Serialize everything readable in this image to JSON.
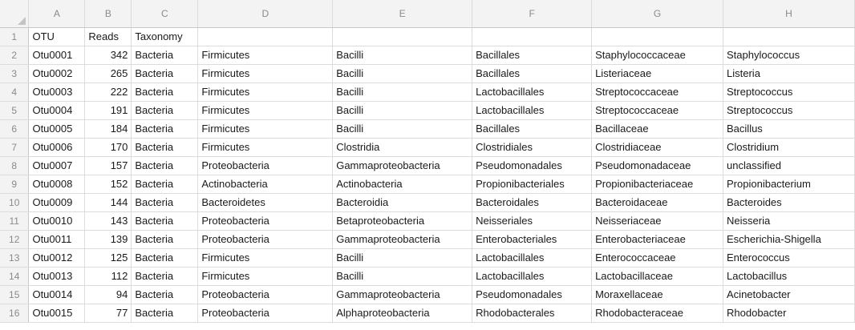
{
  "columns": [
    "A",
    "B",
    "C",
    "D",
    "E",
    "F",
    "G",
    "H"
  ],
  "rows": [
    [
      "OTU",
      "Reads",
      "Taxonomy",
      "",
      "",
      "",
      "",
      ""
    ],
    [
      "Otu0001",
      "342",
      "Bacteria",
      "Firmicutes",
      "Bacilli",
      "Bacillales",
      "Staphylococcaceae",
      "Staphylococcus"
    ],
    [
      "Otu0002",
      "265",
      "Bacteria",
      "Firmicutes",
      "Bacilli",
      "Bacillales",
      "Listeriaceae",
      "Listeria"
    ],
    [
      "Otu0003",
      "222",
      "Bacteria",
      "Firmicutes",
      "Bacilli",
      "Lactobacillales",
      "Streptococcaceae",
      "Streptococcus"
    ],
    [
      "Otu0004",
      "191",
      "Bacteria",
      "Firmicutes",
      "Bacilli",
      "Lactobacillales",
      "Streptococcaceae",
      "Streptococcus"
    ],
    [
      "Otu0005",
      "184",
      "Bacteria",
      "Firmicutes",
      "Bacilli",
      "Bacillales",
      "Bacillaceae",
      "Bacillus"
    ],
    [
      "Otu0006",
      "170",
      "Bacteria",
      "Firmicutes",
      "Clostridia",
      "Clostridiales",
      "Clostridiaceae",
      "Clostridium"
    ],
    [
      "Otu0007",
      "157",
      "Bacteria",
      "Proteobacteria",
      "Gammaproteobacteria",
      "Pseudomonadales",
      "Pseudomonadaceae",
      "unclassified"
    ],
    [
      "Otu0008",
      "152",
      "Bacteria",
      "Actinobacteria",
      "Actinobacteria",
      "Propionibacteriales",
      "Propionibacteriaceae",
      "Propionibacterium"
    ],
    [
      "Otu0009",
      "144",
      "Bacteria",
      "Bacteroidetes",
      "Bacteroidia",
      "Bacteroidales",
      "Bacteroidaceae",
      "Bacteroides"
    ],
    [
      "Otu0010",
      "143",
      "Bacteria",
      "Proteobacteria",
      "Betaproteobacteria",
      "Neisseriales",
      "Neisseriaceae",
      "Neisseria"
    ],
    [
      "Otu0011",
      "139",
      "Bacteria",
      "Proteobacteria",
      "Gammaproteobacteria",
      "Enterobacteriales",
      "Enterobacteriaceae",
      "Escherichia-Shigella"
    ],
    [
      "Otu0012",
      "125",
      "Bacteria",
      "Firmicutes",
      "Bacilli",
      "Lactobacillales",
      "Enterococcaceae",
      "Enterococcus"
    ],
    [
      "Otu0013",
      "112",
      "Bacteria",
      "Firmicutes",
      "Bacilli",
      "Lactobacillales",
      "Lactobacillaceae",
      "Lactobacillus"
    ],
    [
      "Otu0014",
      "94",
      "Bacteria",
      "Proteobacteria",
      "Gammaproteobacteria",
      "Pseudomonadales",
      "Moraxellaceae",
      "Acinetobacter"
    ],
    [
      "Otu0015",
      "77",
      "Bacteria",
      "Proteobacteria",
      "Alphaproteobacteria",
      "Rhodobacterales",
      "Rhodobacteraceae",
      "Rhodobacter"
    ]
  ]
}
